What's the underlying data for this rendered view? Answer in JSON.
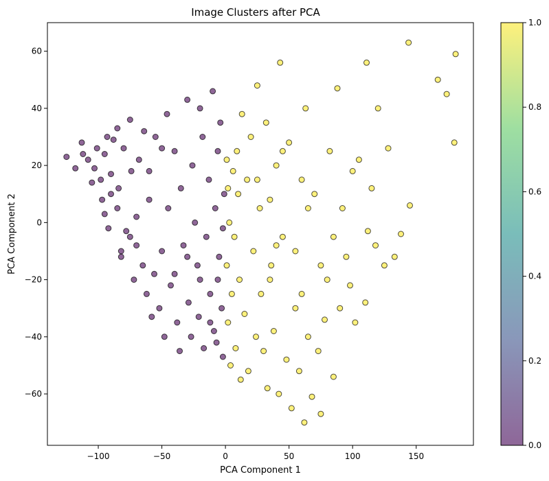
{
  "chart_data": {
    "type": "scatter",
    "title": "Image Clusters after PCA",
    "xlabel": "PCA Component 1",
    "ylabel": "PCA Component 2",
    "xlim": [
      -140,
      195
    ],
    "ylim": [
      -78,
      70
    ],
    "xticks": [
      -100,
      -50,
      0,
      50,
      100,
      150
    ],
    "yticks": [
      -60,
      -40,
      -20,
      0,
      20,
      40,
      60
    ],
    "grid": false,
    "marker_alpha": 0.6,
    "marker_edgecolor": "#000000",
    "colorbar": {
      "colormap": "viridis",
      "range": [
        0.0,
        1.0
      ],
      "ticks": [
        "0.0",
        "0.2",
        "0.4",
        "0.6",
        "0.8",
        "1.0"
      ],
      "stops": [
        "#440154",
        "#3b528b",
        "#21918c",
        "#5ec962",
        "#fde725"
      ]
    },
    "series": [
      {
        "cluster": 0,
        "color": "#440154",
        "points": [
          [
            -125,
            23
          ],
          [
            -118,
            19
          ],
          [
            -113,
            28
          ],
          [
            -112,
            24
          ],
          [
            -108,
            22
          ],
          [
            -103,
            19
          ],
          [
            -101,
            26
          ],
          [
            -98,
            15
          ],
          [
            -97,
            8
          ],
          [
            -95,
            24
          ],
          [
            -93,
            30
          ],
          [
            -92,
            -2
          ],
          [
            -90,
            17
          ],
          [
            -88,
            29
          ],
          [
            -85,
            33
          ],
          [
            -84,
            12
          ],
          [
            -82,
            -10
          ],
          [
            -80,
            26
          ],
          [
            -78,
            -3
          ],
          [
            -75,
            -5
          ],
          [
            -75,
            36
          ],
          [
            -74,
            18
          ],
          [
            -72,
            -20
          ],
          [
            -70,
            -8
          ],
          [
            -68,
            22
          ],
          [
            -65,
            -15
          ],
          [
            -64,
            32
          ],
          [
            -62,
            -25
          ],
          [
            -60,
            8
          ],
          [
            -58,
            -33
          ],
          [
            -56,
            -18
          ],
          [
            -55,
            30
          ],
          [
            -52,
            -30
          ],
          [
            -50,
            -10
          ],
          [
            -48,
            -40
          ],
          [
            -46,
            38
          ],
          [
            -45,
            5
          ],
          [
            -43,
            -22
          ],
          [
            -40,
            25
          ],
          [
            -38,
            -35
          ],
          [
            -36,
            -45
          ],
          [
            -35,
            12
          ],
          [
            -33,
            -8
          ],
          [
            -30,
            43
          ],
          [
            -29,
            -28
          ],
          [
            -27,
            -40
          ],
          [
            -26,
            20
          ],
          [
            -24,
            0
          ],
          [
            -22,
            -15
          ],
          [
            -21,
            -33
          ],
          [
            -20,
            40
          ],
          [
            -18,
            30
          ],
          [
            -17,
            -44
          ],
          [
            -15,
            -5
          ],
          [
            -13,
            15
          ],
          [
            -12,
            -25
          ],
          [
            -10,
            46
          ],
          [
            -9,
            -38
          ],
          [
            -8,
            5
          ],
          [
            -7,
            -42
          ],
          [
            -6,
            25
          ],
          [
            -5,
            -12
          ],
          [
            -4,
            35
          ],
          [
            -3,
            -30
          ],
          [
            -2,
            -47
          ],
          [
            -1,
            10
          ],
          [
            -85,
            5
          ],
          [
            -95,
            3
          ],
          [
            -105,
            14
          ],
          [
            -82,
            -12
          ],
          [
            -90,
            10
          ],
          [
            -70,
            2
          ],
          [
            -60,
            18
          ],
          [
            -50,
            26
          ],
          [
            -40,
            -18
          ],
          [
            -30,
            -12
          ],
          [
            -20,
            -20
          ],
          [
            -12,
            -35
          ],
          [
            -6,
            -20
          ],
          [
            -2,
            -2
          ]
        ]
      },
      {
        "cluster": 1,
        "color": "#fde725",
        "points": [
          [
            181,
            59
          ],
          [
            180,
            28
          ],
          [
            174,
            45
          ],
          [
            167,
            50
          ],
          [
            144,
            63
          ],
          [
            111,
            56
          ],
          [
            145,
            6
          ],
          [
            138,
            -4
          ],
          [
            128,
            26
          ],
          [
            133,
            -12
          ],
          [
            125,
            -15
          ],
          [
            120,
            40
          ],
          [
            118,
            -8
          ],
          [
            115,
            12
          ],
          [
            112,
            -3
          ],
          [
            110,
            -28
          ],
          [
            105,
            22
          ],
          [
            102,
            -35
          ],
          [
            100,
            18
          ],
          [
            98,
            -22
          ],
          [
            95,
            -12
          ],
          [
            92,
            5
          ],
          [
            90,
            -30
          ],
          [
            88,
            47
          ],
          [
            85,
            -54
          ],
          [
            82,
            25
          ],
          [
            80,
            -20
          ],
          [
            78,
            -34
          ],
          [
            75,
            -67
          ],
          [
            73,
            -45
          ],
          [
            70,
            10
          ],
          [
            68,
            -61
          ],
          [
            65,
            -40
          ],
          [
            63,
            40
          ],
          [
            62,
            -70
          ],
          [
            60,
            15
          ],
          [
            58,
            -52
          ],
          [
            55,
            -30
          ],
          [
            52,
            -65
          ],
          [
            50,
            28
          ],
          [
            48,
            -48
          ],
          [
            45,
            -5
          ],
          [
            43,
            56
          ],
          [
            42,
            -60
          ],
          [
            40,
            20
          ],
          [
            38,
            -38
          ],
          [
            36,
            -15
          ],
          [
            35,
            8
          ],
          [
            33,
            -58
          ],
          [
            32,
            35
          ],
          [
            30,
            -45
          ],
          [
            28,
            -25
          ],
          [
            27,
            5
          ],
          [
            25,
            48
          ],
          [
            24,
            -40
          ],
          [
            22,
            -10
          ],
          [
            20,
            30
          ],
          [
            18,
            -52
          ],
          [
            17,
            15
          ],
          [
            15,
            -32
          ],
          [
            13,
            38
          ],
          [
            12,
            -55
          ],
          [
            11,
            -20
          ],
          [
            10,
            10
          ],
          [
            9,
            25
          ],
          [
            8,
            -44
          ],
          [
            7,
            -5
          ],
          [
            6,
            18
          ],
          [
            5,
            -25
          ],
          [
            4,
            -50
          ],
          [
            3,
            0
          ],
          [
            2,
            12
          ],
          [
            2,
            -35
          ],
          [
            1,
            22
          ],
          [
            1,
            -15
          ],
          [
            55,
            -10
          ],
          [
            65,
            5
          ],
          [
            45,
            25
          ],
          [
            35,
            -20
          ],
          [
            75,
            -15
          ],
          [
            85,
            -5
          ],
          [
            25,
            15
          ],
          [
            60,
            -25
          ],
          [
            40,
            -8
          ]
        ]
      }
    ]
  }
}
